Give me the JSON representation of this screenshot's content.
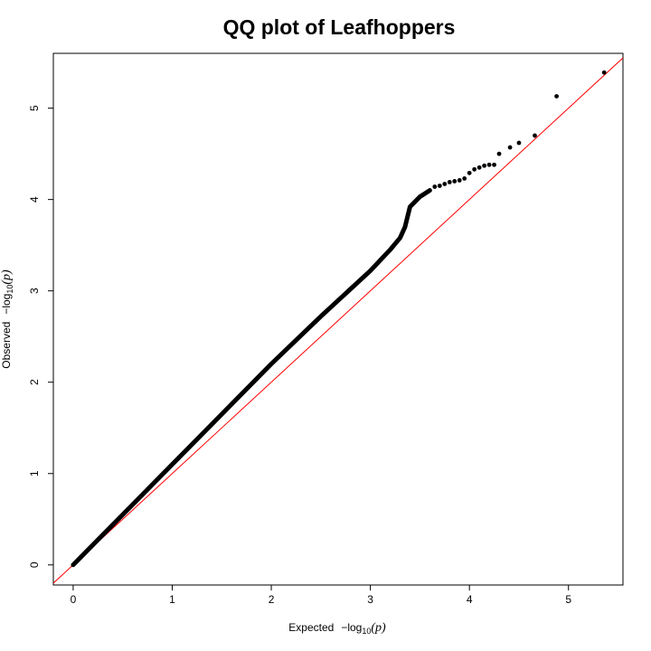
{
  "chart_data": {
    "type": "scatter",
    "title": "QQ plot of Leafhoppers",
    "xlabel": {
      "prefix": "Expected",
      "minus": "−",
      "log": "log",
      "base": "10",
      "arg": "(p)"
    },
    "ylabel": {
      "prefix": "Observed",
      "minus": "−",
      "log": "log",
      "base": "10",
      "arg": "(p)"
    },
    "xlim": [
      -0.2,
      5.55
    ],
    "ylim": [
      -0.22,
      5.6
    ],
    "x_ticks": [
      0,
      1,
      2,
      3,
      4,
      5
    ],
    "x_tick_labels": [
      "0",
      "1",
      "2",
      "3",
      "4",
      "5"
    ],
    "y_ticks": [
      0,
      1,
      2,
      3,
      4,
      5
    ],
    "y_tick_labels": [
      "0",
      "1",
      "2",
      "3",
      "4",
      "5"
    ],
    "grid": false,
    "reference_line": {
      "slope": 1,
      "intercept": 0,
      "color": "#ff0000"
    },
    "point_color": "#000000",
    "trend": {
      "x": [
        0.0,
        0.5,
        1.0,
        1.5,
        2.0,
        2.5,
        3.0,
        3.2,
        3.3,
        3.35,
        3.4,
        3.5,
        3.6
      ],
      "y": [
        0.0,
        0.55,
        1.1,
        1.65,
        2.2,
        2.72,
        3.22,
        3.45,
        3.58,
        3.7,
        3.92,
        4.03,
        4.1
      ]
    },
    "points": [
      {
        "x": 3.65,
        "y": 4.14
      },
      {
        "x": 3.7,
        "y": 4.15
      },
      {
        "x": 3.75,
        "y": 4.17
      },
      {
        "x": 3.8,
        "y": 4.19
      },
      {
        "x": 3.85,
        "y": 4.2
      },
      {
        "x": 3.9,
        "y": 4.21
      },
      {
        "x": 3.95,
        "y": 4.23
      },
      {
        "x": 4.0,
        "y": 4.29
      },
      {
        "x": 4.05,
        "y": 4.33
      },
      {
        "x": 4.1,
        "y": 4.35
      },
      {
        "x": 4.15,
        "y": 4.37
      },
      {
        "x": 4.2,
        "y": 4.38
      },
      {
        "x": 4.25,
        "y": 4.38
      },
      {
        "x": 4.3,
        "y": 4.5
      },
      {
        "x": 4.41,
        "y": 4.57
      },
      {
        "x": 4.5,
        "y": 4.62
      },
      {
        "x": 4.66,
        "y": 4.7
      },
      {
        "x": 4.88,
        "y": 5.13
      },
      {
        "x": 5.36,
        "y": 5.39
      }
    ]
  }
}
